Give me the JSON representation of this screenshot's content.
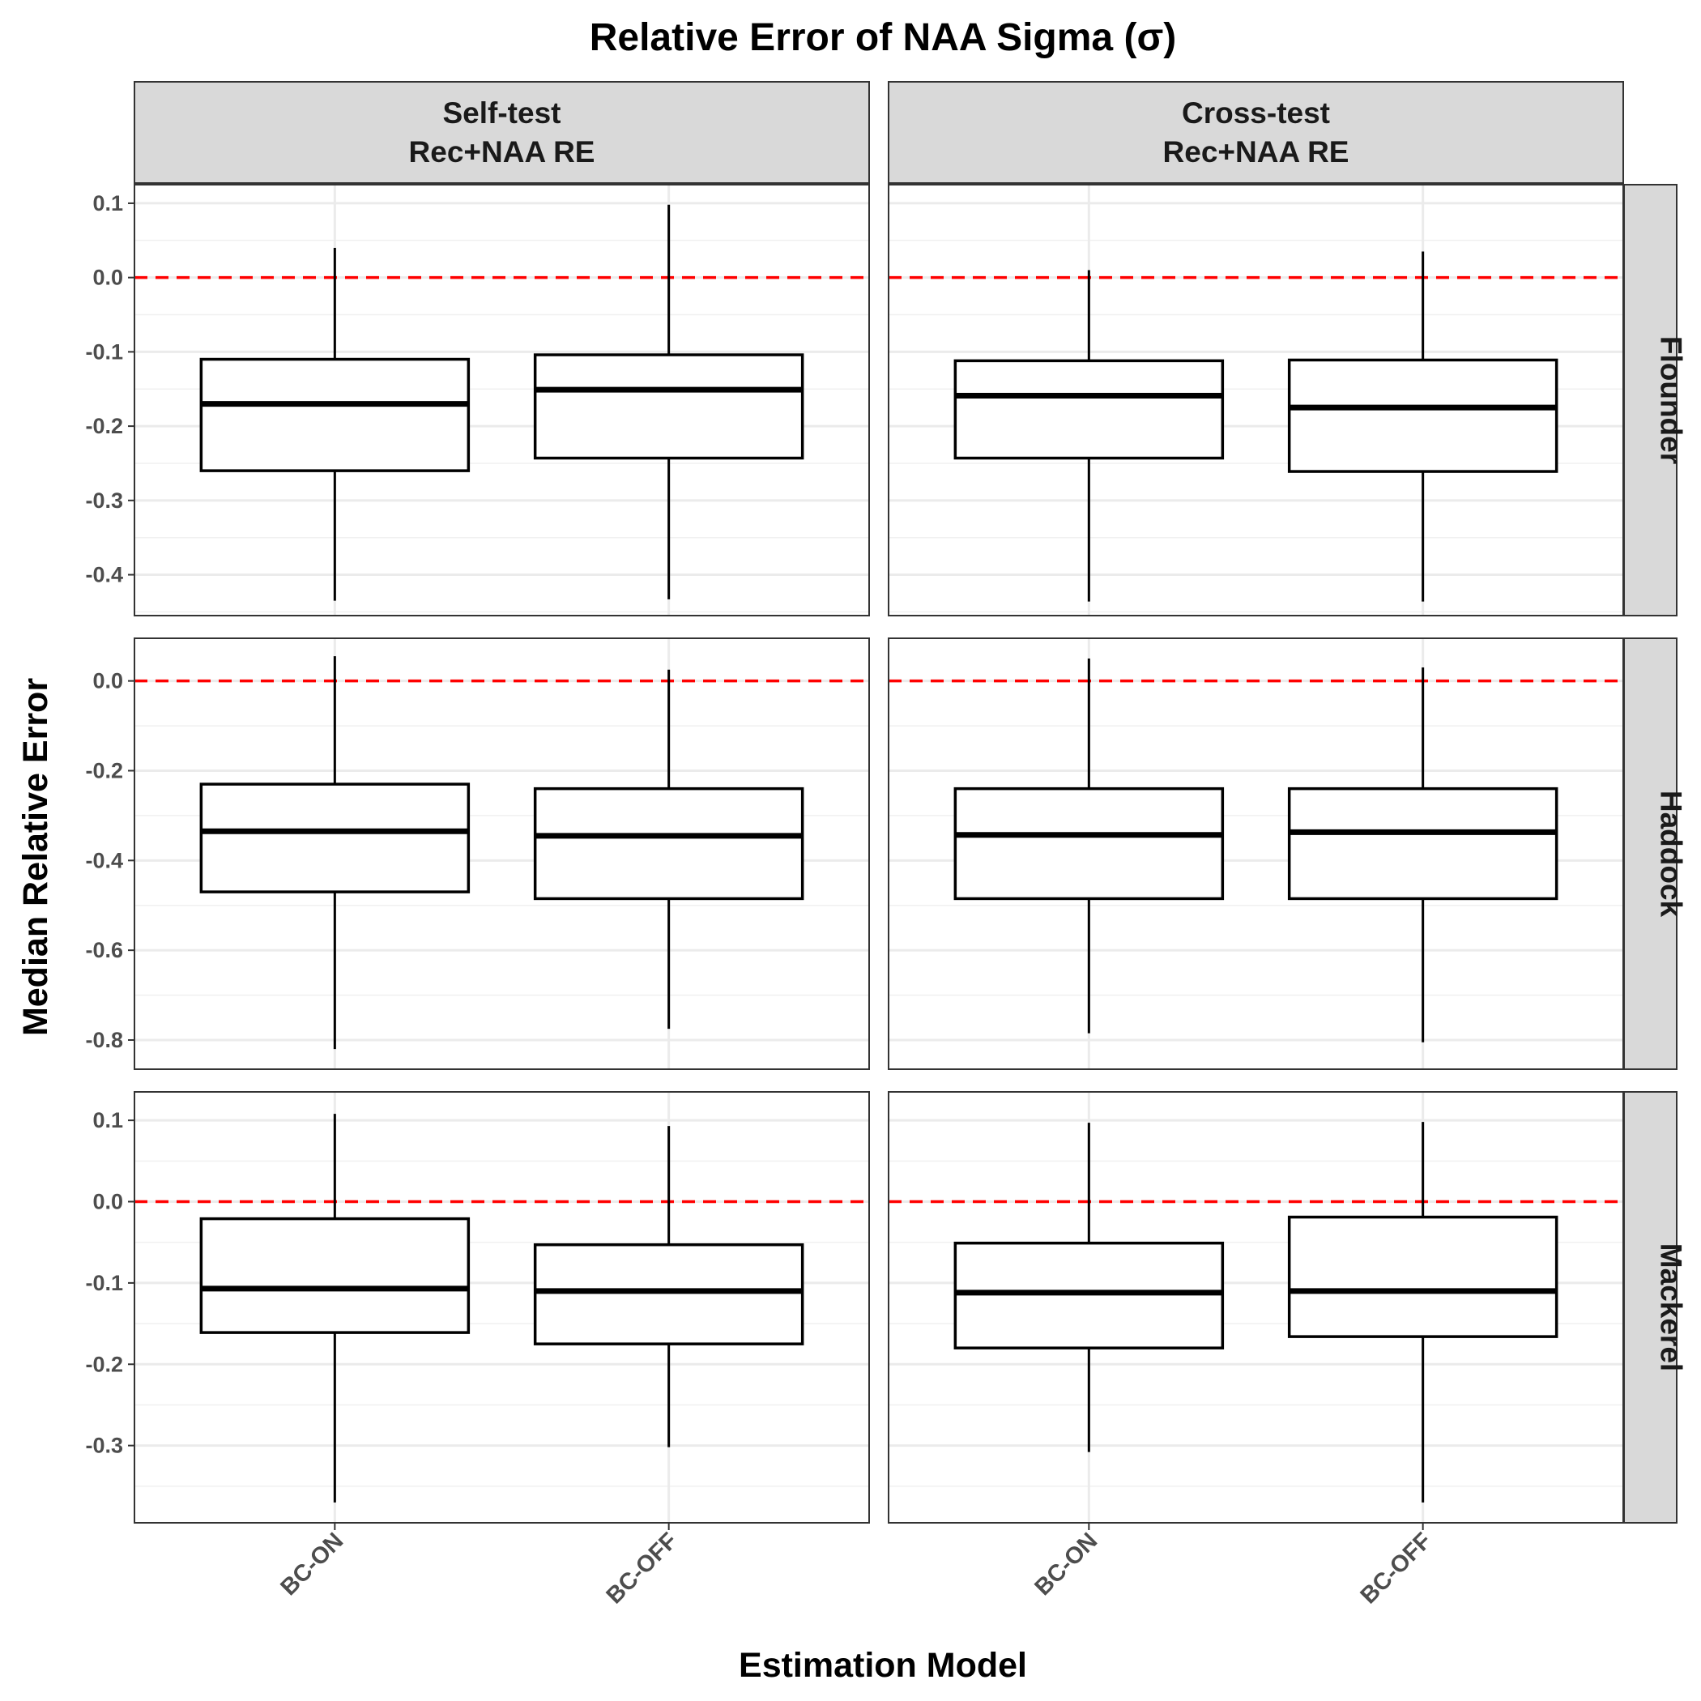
{
  "chart_data": {
    "type": "box",
    "title": "Relative Error of NAA Sigma (σ)",
    "xlabel": "Estimation Model",
    "ylabel": "Median Relative Error",
    "categories": [
      "BC-ON",
      "BC-OFF"
    ],
    "columns": [
      "Self-test\nRec+NAA RE",
      "Cross-test\nRec+NAA RE"
    ],
    "rows": [
      "Flounder",
      "Haddock",
      "Mackerel"
    ],
    "reference_line": 0,
    "reference_color": "#ff0000",
    "grid": true,
    "panels": [
      {
        "row": "Flounder",
        "ylim": [
          -0.455,
          0.125
        ],
        "yticks": [
          0.1,
          0.0,
          -0.1,
          -0.2,
          -0.3,
          -0.4
        ],
        "tick_labels": [
          "0.1",
          "0.0",
          "-0.1",
          "-0.2",
          "-0.3",
          "-0.4"
        ],
        "facets": [
          {
            "column": "Self-test\nRec+NAA RE",
            "boxes": [
              {
                "category": "BC-ON",
                "min": -0.435,
                "q1": -0.26,
                "median": -0.17,
                "q3": -0.11,
                "max": 0.04
              },
              {
                "category": "BC-OFF",
                "min": -0.433,
                "q1": -0.243,
                "median": -0.151,
                "q3": -0.104,
                "max": 0.098
              }
            ]
          },
          {
            "column": "Cross-test\nRec+NAA RE",
            "boxes": [
              {
                "category": "BC-ON",
                "min": -0.436,
                "q1": -0.243,
                "median": -0.159,
                "q3": -0.112,
                "max": 0.01
              },
              {
                "category": "BC-OFF",
                "min": -0.436,
                "q1": -0.261,
                "median": -0.175,
                "q3": -0.111,
                "max": 0.035
              }
            ]
          }
        ]
      },
      {
        "row": "Haddock",
        "ylim": [
          -0.865,
          0.095
        ],
        "yticks": [
          0.0,
          -0.2,
          -0.4,
          -0.6,
          -0.8
        ],
        "tick_labels": [
          "0.0",
          "-0.2",
          "-0.4",
          "-0.6",
          "-0.8"
        ],
        "facets": [
          {
            "column": "Self-test\nRec+NAA RE",
            "boxes": [
              {
                "category": "BC-ON",
                "min": -0.82,
                "q1": -0.47,
                "median": -0.335,
                "q3": -0.23,
                "max": 0.055
              },
              {
                "category": "BC-OFF",
                "min": -0.775,
                "q1": -0.485,
                "median": -0.345,
                "q3": -0.24,
                "max": 0.025
              }
            ]
          },
          {
            "column": "Cross-test\nRec+NAA RE",
            "boxes": [
              {
                "category": "BC-ON",
                "min": -0.785,
                "q1": -0.485,
                "median": -0.343,
                "q3": -0.24,
                "max": 0.05
              },
              {
                "category": "BC-OFF",
                "min": -0.805,
                "q1": -0.485,
                "median": -0.337,
                "q3": -0.24,
                "max": 0.03
              }
            ]
          }
        ]
      },
      {
        "row": "Mackerel",
        "ylim": [
          -0.395,
          0.135
        ],
        "yticks": [
          0.1,
          0.0,
          -0.1,
          -0.2,
          -0.3
        ],
        "tick_labels": [
          "0.1",
          "0.0",
          "-0.1",
          "-0.2",
          "-0.3"
        ],
        "facets": [
          {
            "column": "Self-test\nRec+NAA RE",
            "boxes": [
              {
                "category": "BC-ON",
                "min": -0.37,
                "q1": -0.161,
                "median": -0.107,
                "q3": -0.021,
                "max": 0.108
              },
              {
                "category": "BC-OFF",
                "min": -0.302,
                "q1": -0.175,
                "median": -0.11,
                "q3": -0.053,
                "max": 0.093
              }
            ]
          },
          {
            "column": "Cross-test\nRec+NAA RE",
            "boxes": [
              {
                "category": "BC-ON",
                "min": -0.308,
                "q1": -0.18,
                "median": -0.112,
                "q3": -0.051,
                "max": 0.097
              },
              {
                "category": "BC-OFF",
                "min": -0.37,
                "q1": -0.166,
                "median": -0.11,
                "q3": -0.019,
                "max": 0.098
              }
            ]
          }
        ]
      }
    ]
  }
}
